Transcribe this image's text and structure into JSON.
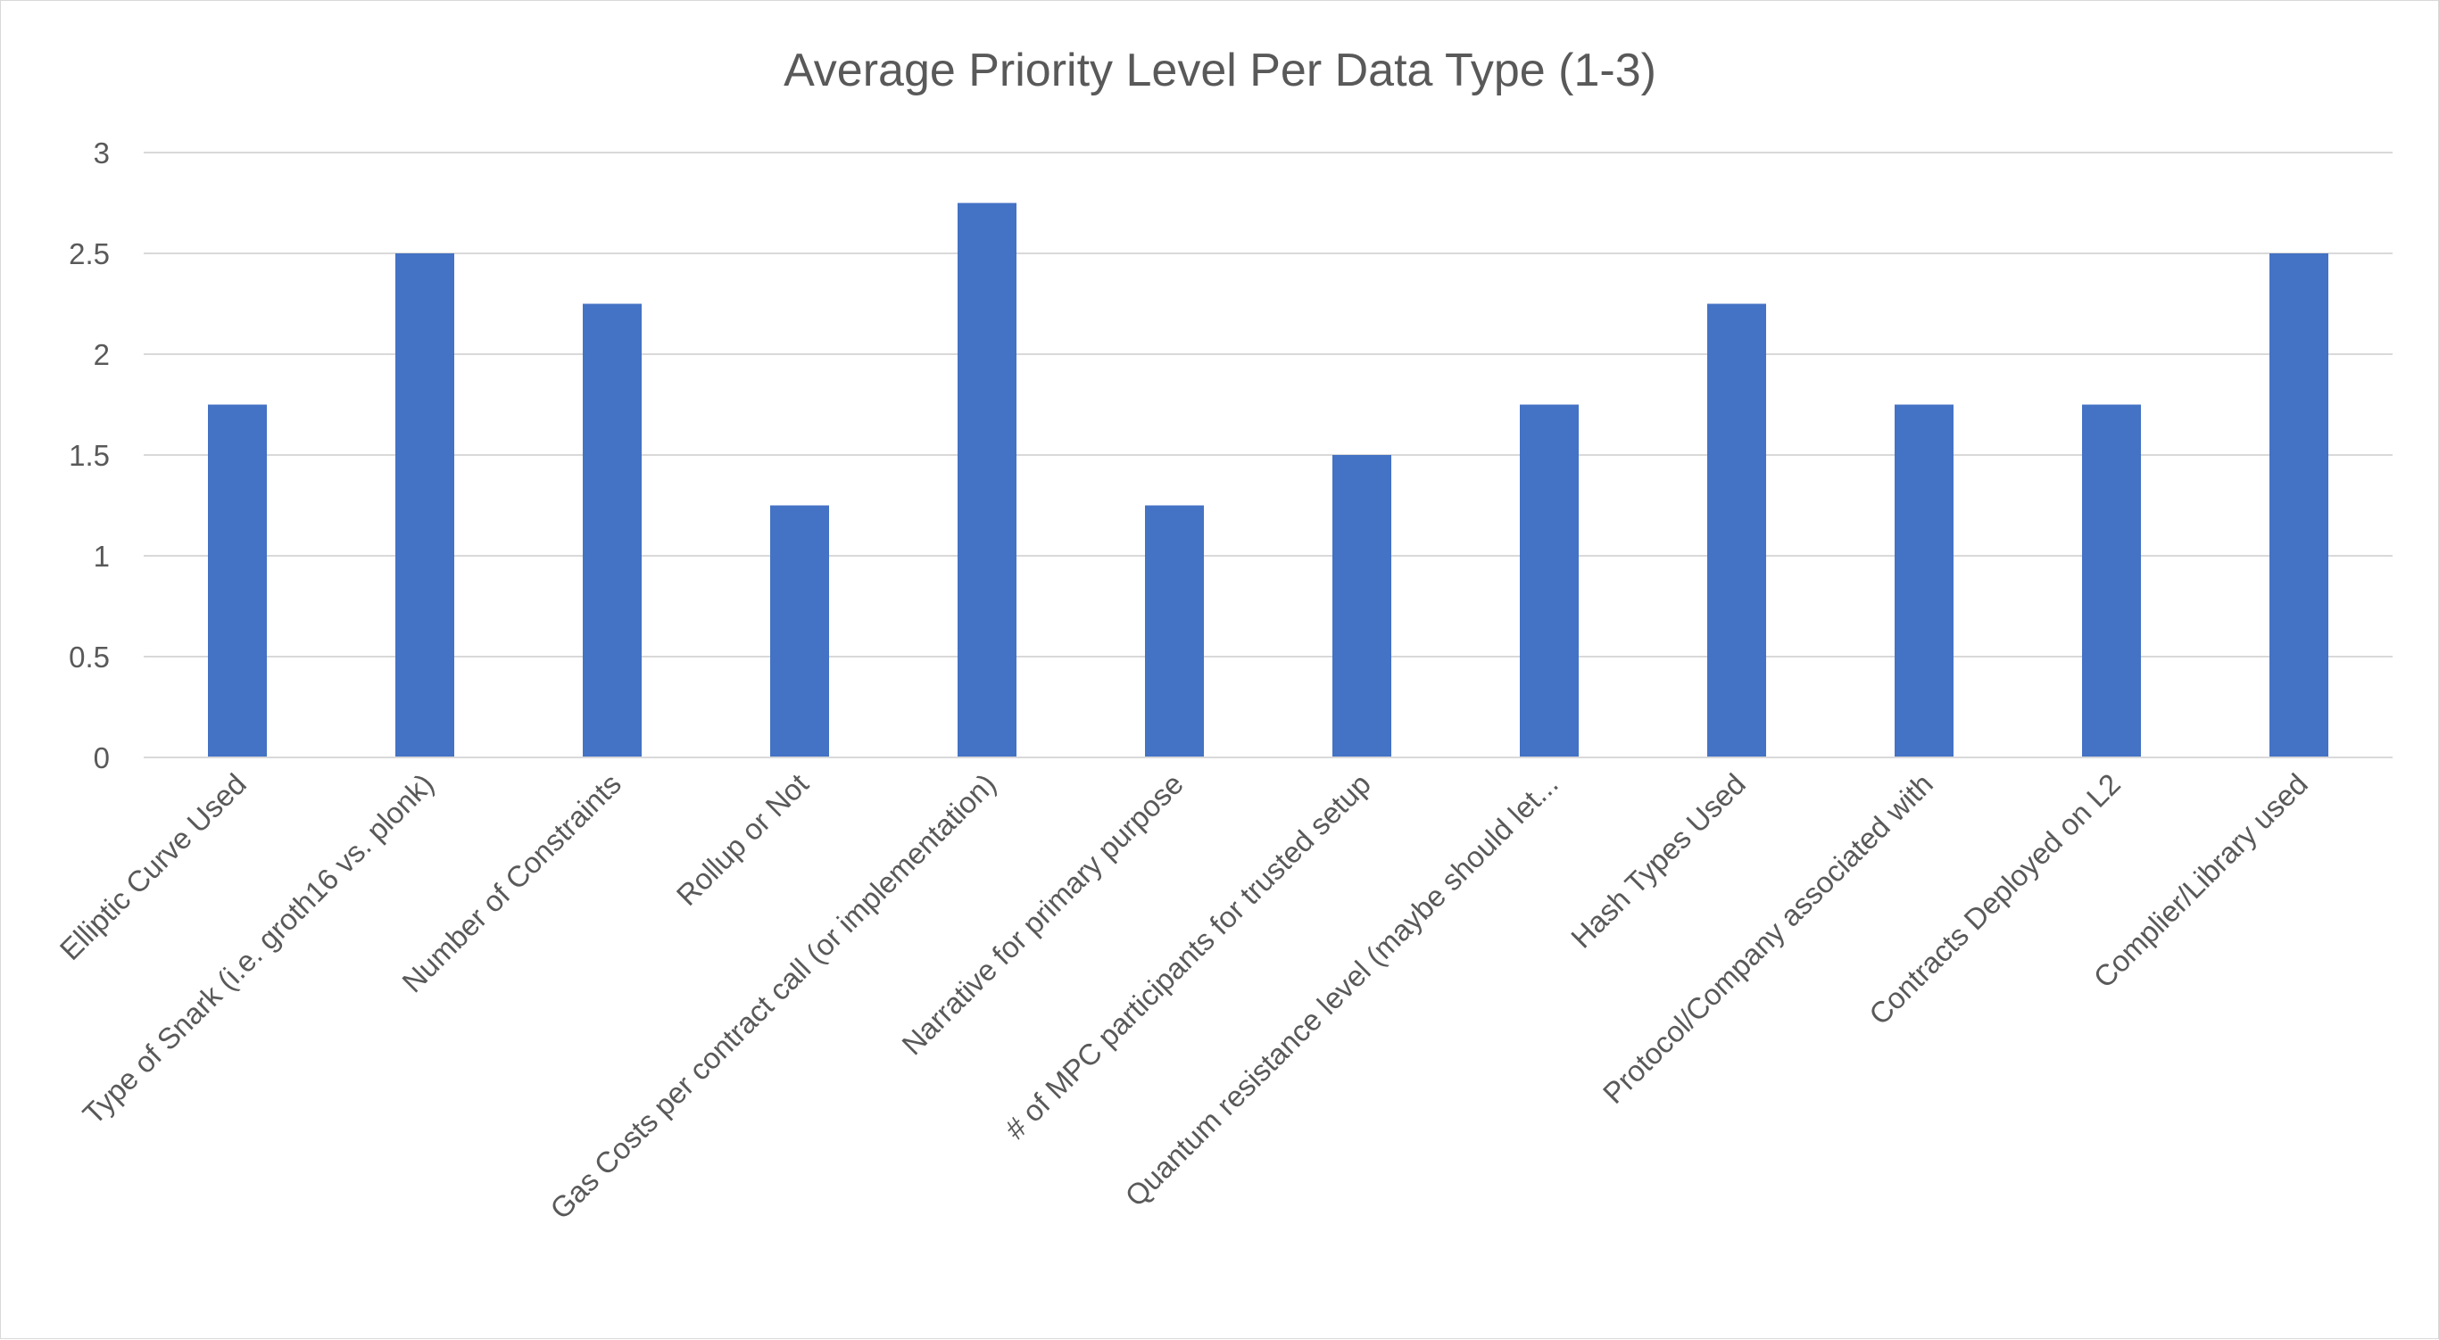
{
  "chart_data": {
    "type": "bar",
    "title": "Average Priority Level Per Data Type (1-3)",
    "xlabel": "",
    "ylabel": "",
    "ylim": [
      0,
      3
    ],
    "yticks": [
      0,
      0.5,
      1,
      1.5,
      2,
      2.5,
      3
    ],
    "ytick_labels": [
      "0",
      "0.5",
      "1",
      "1.5",
      "2",
      "2.5",
      "3"
    ],
    "grid": true,
    "legend": "none",
    "bar_color": "#4472C4",
    "categories": [
      "Elliptic Curve Used",
      "Type of Snark (i.e. groth16 vs. plonk)",
      "Number of Constraints",
      "Rollup or Not",
      "Gas Costs per contract call (or implementation)",
      "Narrative for primary purpose",
      "# of MPC participants for trusted setup",
      "Quantum resistance level (maybe should let...",
      "Hash Types Used",
      "Protocol/Company associated with",
      "Contracts Deployed on L2",
      "Complier/Library used"
    ],
    "values": [
      1.75,
      2.5,
      2.25,
      1.25,
      2.75,
      1.25,
      1.5,
      1.75,
      2.25,
      1.75,
      1.75,
      2.5
    ]
  }
}
